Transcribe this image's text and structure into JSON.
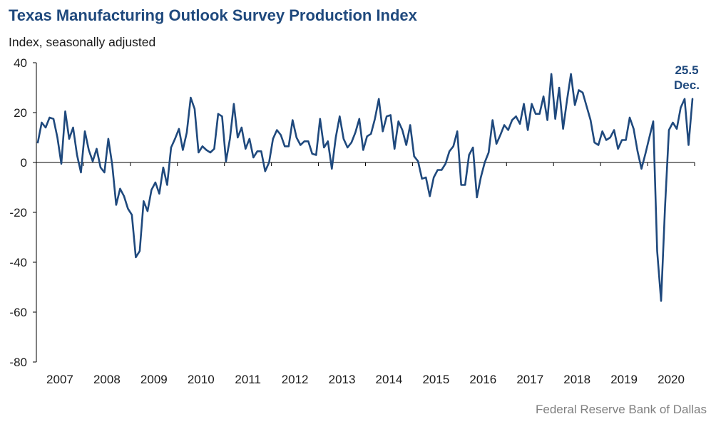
{
  "header": {
    "title": "Texas Manufacturing Outlook Survey Production Index",
    "subtitle": "Index, seasonally adjusted"
  },
  "footer": {
    "source": "Federal Reserve Bank of Dallas"
  },
  "chart_data": {
    "type": "line",
    "title": "Texas Manufacturing Outlook Survey Production Index",
    "subtitle": "Index, seasonally adjusted",
    "ylim": [
      -80,
      40
    ],
    "yticks": [
      40,
      20,
      0,
      -20,
      -40,
      -60,
      -80
    ],
    "x_start": "2007-01",
    "x_end": "2020-12",
    "xticks": [
      "2007",
      "2008",
      "2009",
      "2010",
      "2011",
      "2012",
      "2013",
      "2014",
      "2015",
      "2016",
      "2017",
      "2018",
      "2019",
      "2020"
    ],
    "grid": false,
    "line_color": "#1f497d",
    "annotation": {
      "value": "25.5",
      "label": "Dec."
    },
    "series": [
      {
        "values": [
          8,
          16,
          14,
          18,
          17.5,
          10,
          -0.5,
          20.5,
          9.5,
          14,
          3,
          -4,
          12.5,
          5,
          0.5,
          5.5,
          -2,
          -4,
          9.5,
          -1,
          -17,
          -10.5,
          -13.5,
          -18.5,
          -21,
          -38,
          -35.5,
          -15.5,
          -19.5,
          -11,
          -8,
          -12.5,
          -2,
          -9,
          6,
          9.5,
          13.5,
          5,
          12,
          26,
          21.5,
          4,
          6.5,
          5,
          4,
          5.5,
          19.5,
          18.5,
          0.5,
          9.5,
          23.5,
          10,
          14,
          5.5,
          9.5,
          2,
          4.5,
          4.5,
          -3.5,
          0,
          9.5,
          13,
          11,
          6.5,
          6.5,
          17,
          10,
          7,
          8.5,
          8.5,
          3.5,
          3,
          17.5,
          6,
          8.5,
          -2.5,
          10,
          18.5,
          9.5,
          6,
          8,
          12,
          17.5,
          5,
          10.5,
          11.5,
          17.5,
          25.5,
          12.5,
          18.5,
          19,
          5.5,
          16.5,
          13,
          7,
          15,
          2.5,
          0.5,
          -6.5,
          -6,
          -13.5,
          -6,
          -3,
          -3,
          -0.5,
          4.5,
          6.5,
          12.5,
          -9,
          -9,
          3,
          6,
          -14,
          -6,
          0,
          4,
          17,
          7.5,
          11,
          15,
          13,
          17,
          18.5,
          15.5,
          23.5,
          13,
          23.5,
          19.5,
          19.5,
          26.5,
          17,
          35.5,
          17.5,
          30,
          13.5,
          25,
          35.5,
          23,
          29,
          28,
          22.5,
          17,
          8,
          7,
          12.5,
          9,
          10,
          13,
          5.5,
          9,
          9,
          18,
          13.5,
          4.5,
          -2.5,
          3.5,
          10,
          16.5,
          -35.5,
          -55.5,
          -18,
          13,
          16,
          13.5,
          22,
          25.5,
          7,
          25.5
        ]
      }
    ]
  }
}
